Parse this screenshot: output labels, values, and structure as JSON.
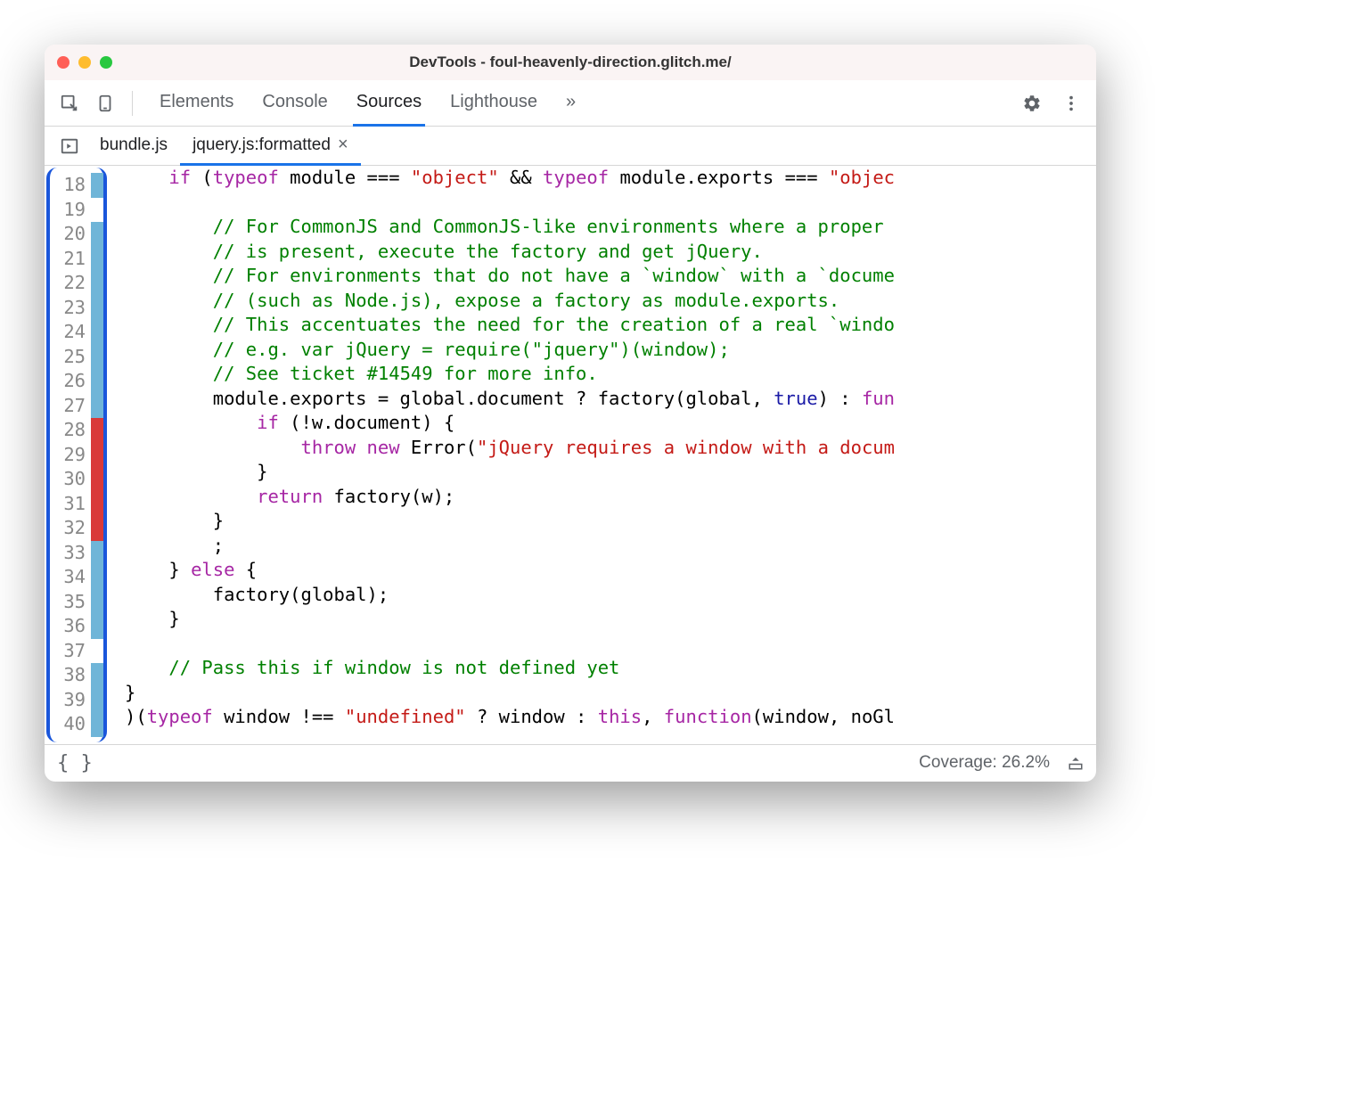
{
  "window": {
    "title": "DevTools - foul-heavenly-direction.glitch.me/"
  },
  "mainTabs": {
    "items": [
      "Elements",
      "Console",
      "Sources",
      "Lighthouse"
    ],
    "activeIndex": 2,
    "overflow": "»"
  },
  "fileTabs": {
    "items": [
      {
        "label": "bundle.js",
        "active": false,
        "closable": false
      },
      {
        "label": "jquery.js:formatted",
        "active": true,
        "closable": true
      }
    ]
  },
  "editor": {
    "startLine": 18,
    "lines": [
      {
        "n": 18,
        "cov": "blue",
        "tokens": [
          [
            "    ",
            ""
          ],
          [
            "if",
            "kw"
          ],
          [
            " (",
            ""
          ],
          [
            "typeof",
            "kw"
          ],
          [
            " module === ",
            ""
          ],
          [
            "\"object\"",
            "str"
          ],
          [
            " && ",
            ""
          ],
          [
            "typeof",
            "kw"
          ],
          [
            " module.exports === ",
            ""
          ],
          [
            "\"objec",
            "str"
          ]
        ]
      },
      {
        "n": 19,
        "cov": "none",
        "tokens": [
          [
            "",
            ""
          ]
        ]
      },
      {
        "n": 20,
        "cov": "blue",
        "tokens": [
          [
            "        ",
            ""
          ],
          [
            "// For CommonJS and CommonJS-like environments where a proper ",
            "com"
          ]
        ]
      },
      {
        "n": 21,
        "cov": "blue",
        "tokens": [
          [
            "        ",
            ""
          ],
          [
            "// is present, execute the factory and get jQuery.",
            "com"
          ]
        ]
      },
      {
        "n": 22,
        "cov": "blue",
        "tokens": [
          [
            "        ",
            ""
          ],
          [
            "// For environments that do not have a `window` with a `docume",
            "com"
          ]
        ]
      },
      {
        "n": 23,
        "cov": "blue",
        "tokens": [
          [
            "        ",
            ""
          ],
          [
            "// (such as Node.js), expose a factory as module.exports.",
            "com"
          ]
        ]
      },
      {
        "n": 24,
        "cov": "blue",
        "tokens": [
          [
            "        ",
            ""
          ],
          [
            "// This accentuates the need for the creation of a real `windo",
            "com"
          ]
        ]
      },
      {
        "n": 25,
        "cov": "blue",
        "tokens": [
          [
            "        ",
            ""
          ],
          [
            "// e.g. var jQuery = require(\"jquery\")(window);",
            "com"
          ]
        ]
      },
      {
        "n": 26,
        "cov": "blue",
        "tokens": [
          [
            "        ",
            ""
          ],
          [
            "// See ticket #14549 for more info.",
            "com"
          ]
        ]
      },
      {
        "n": 27,
        "cov": "blue",
        "tokens": [
          [
            "        module.exports = global.document ? factory(global, ",
            ""
          ],
          [
            "true",
            "bool"
          ],
          [
            ") : ",
            ""
          ],
          [
            "fun",
            "kw"
          ]
        ]
      },
      {
        "n": 28,
        "cov": "red",
        "tokens": [
          [
            "            ",
            ""
          ],
          [
            "if",
            "kw"
          ],
          [
            " (!w.document) {",
            ""
          ]
        ]
      },
      {
        "n": 29,
        "cov": "red",
        "tokens": [
          [
            "                ",
            ""
          ],
          [
            "throw",
            "kw"
          ],
          [
            " ",
            ""
          ],
          [
            "new",
            "kw"
          ],
          [
            " Error(",
            ""
          ],
          [
            "\"jQuery requires a window with a docum",
            "str"
          ]
        ]
      },
      {
        "n": 30,
        "cov": "red",
        "tokens": [
          [
            "            }",
            ""
          ]
        ]
      },
      {
        "n": 31,
        "cov": "red",
        "tokens": [
          [
            "            ",
            ""
          ],
          [
            "return",
            "kw"
          ],
          [
            " factory(w);",
            ""
          ]
        ]
      },
      {
        "n": 32,
        "cov": "red",
        "tokens": [
          [
            "        }",
            ""
          ]
        ]
      },
      {
        "n": 33,
        "cov": "blue",
        "tokens": [
          [
            "        ;",
            ""
          ]
        ]
      },
      {
        "n": 34,
        "cov": "blue",
        "tokens": [
          [
            "    } ",
            ""
          ],
          [
            "else",
            "kw"
          ],
          [
            " {",
            ""
          ]
        ]
      },
      {
        "n": 35,
        "cov": "blue",
        "tokens": [
          [
            "        factory(global);",
            ""
          ]
        ]
      },
      {
        "n": 36,
        "cov": "blue",
        "tokens": [
          [
            "    }",
            ""
          ]
        ]
      },
      {
        "n": 37,
        "cov": "none",
        "tokens": [
          [
            "",
            ""
          ]
        ]
      },
      {
        "n": 38,
        "cov": "blue",
        "tokens": [
          [
            "    ",
            ""
          ],
          [
            "// Pass this if window is not defined yet",
            "com"
          ]
        ]
      },
      {
        "n": 39,
        "cov": "blue",
        "tokens": [
          [
            "}",
            ""
          ]
        ]
      },
      {
        "n": 40,
        "cov": "blue",
        "tokens": [
          [
            ")(",
            ""
          ],
          [
            "typeof",
            "kw"
          ],
          [
            " window !== ",
            ""
          ],
          [
            "\"undefined\"",
            "str"
          ],
          [
            " ? window : ",
            ""
          ],
          [
            "this",
            "this"
          ],
          [
            ", ",
            ""
          ],
          [
            "function",
            "kw"
          ],
          [
            "(window, noGl",
            ""
          ]
        ]
      }
    ]
  },
  "status": {
    "bracesLabel": "{ }",
    "coverage": "Coverage: 26.2%"
  },
  "colors": {
    "covBlue": "#6fb5d8",
    "covRed": "#d93939",
    "accent": "#1a73e8",
    "highlightBorder": "#1a56db"
  }
}
